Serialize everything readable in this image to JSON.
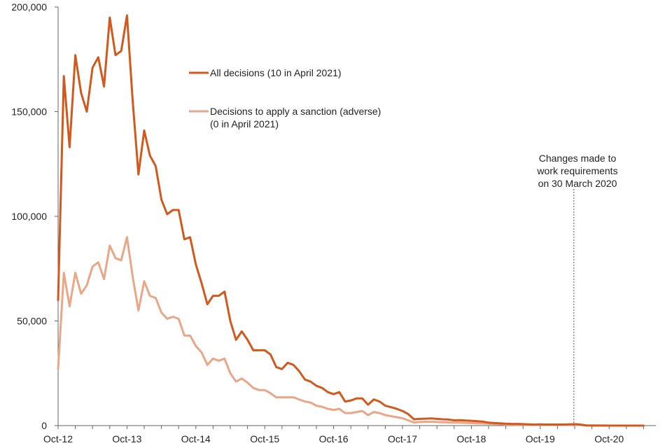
{
  "chart_data": {
    "type": "line",
    "title": "",
    "xlabel": "",
    "ylabel": "",
    "ylim": [
      0,
      200000
    ],
    "grid": false,
    "legend_placement": "upper-center",
    "x_start": "2012-10",
    "y_ticks": [
      "0",
      "50,000",
      "100,000",
      "150,000",
      "200,000"
    ],
    "y_tick_values": [
      0,
      50000,
      100000,
      150000,
      200000
    ],
    "x_ticks": [
      "Oct-12",
      "Oct-13",
      "Oct-14",
      "Oct-15",
      "Oct-16",
      "Oct-17",
      "Oct-18",
      "Oct-19",
      "Oct-20"
    ],
    "x_tick_months": [
      "2012-10",
      "2013-10",
      "2014-10",
      "2015-10",
      "2016-10",
      "2017-10",
      "2018-10",
      "2019-10",
      "2020-10"
    ],
    "series": [
      {
        "name": "All decisions (10 in April 2021)",
        "legend_lines": [
          "All decisions (10 in April 2021)"
        ],
        "color": "#d2581c",
        "values": [
          60000,
          167000,
          133000,
          177000,
          159000,
          150000,
          171000,
          176000,
          162000,
          195000,
          177000,
          179000,
          196000,
          155000,
          120000,
          141000,
          129000,
          124000,
          108000,
          101000,
          103000,
          103000,
          89000,
          90000,
          77000,
          68000,
          58000,
          62000,
          62000,
          64000,
          50000,
          41000,
          45000,
          41000,
          36000,
          36000,
          36000,
          34000,
          28000,
          27000,
          30000,
          29000,
          26000,
          22000,
          21000,
          19000,
          18000,
          16000,
          15000,
          16000,
          11500,
          12000,
          13000,
          13000,
          10000,
          12500,
          11500,
          9500,
          8800,
          8000,
          7000,
          5500,
          3000,
          3200,
          3300,
          3400,
          3200,
          3000,
          2900,
          2500,
          2600,
          2400,
          2300,
          2100,
          1900,
          1400,
          1200,
          1100,
          900,
          800,
          800,
          700,
          600,
          500,
          600,
          500,
          500,
          500,
          500,
          600,
          700,
          500,
          100,
          50,
          30,
          20,
          15,
          15,
          10,
          10,
          10,
          10,
          10
        ]
      },
      {
        "name": "Decisions to apply a sanction (adverse) (0 in April 2021)",
        "legend_lines": [
          "Decisions to apply a sanction (adverse)",
          "(0 in April 2021)"
        ],
        "color": "#eaa687",
        "values": [
          27000,
          73000,
          57000,
          73000,
          63000,
          67000,
          76000,
          78000,
          70000,
          86000,
          80000,
          79000,
          90000,
          71000,
          55000,
          69000,
          62000,
          61000,
          54000,
          51000,
          52000,
          51000,
          43000,
          43000,
          38000,
          35000,
          29000,
          32000,
          31000,
          32000,
          25000,
          21000,
          22500,
          20500,
          18000,
          17000,
          17000,
          15500,
          13500,
          13500,
          13500,
          13500,
          12500,
          11500,
          11000,
          9500,
          9000,
          8000,
          7500,
          8000,
          6000,
          6000,
          6500,
          7000,
          5000,
          6500,
          6000,
          5000,
          4500,
          4000,
          3500,
          2500,
          1500,
          1700,
          1800,
          1800,
          1700,
          1600,
          1500,
          1400,
          1400,
          1300,
          1200,
          1100,
          1000,
          900,
          800,
          700,
          500,
          500,
          400,
          400,
          300,
          300,
          300,
          300,
          300,
          300,
          300,
          300,
          300,
          300,
          50,
          20,
          10,
          5,
          0,
          0,
          0,
          0,
          0,
          0,
          0
        ]
      }
    ],
    "annotation": {
      "lines": [
        "Changes made to",
        "work requirements",
        "on 30 March 2020"
      ],
      "month": "2020-03"
    }
  }
}
